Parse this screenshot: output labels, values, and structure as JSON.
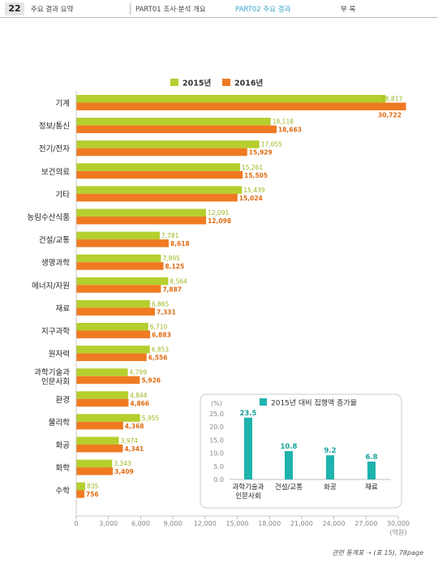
{
  "header": {
    "page_number": "22",
    "nav": [
      "주요 결과 요약",
      "PART01 조사·분석 개요",
      "PART02 주요 결과",
      "부  록"
    ],
    "active_index": 2
  },
  "footer": {
    "note": "관련 통계표 ➝ (표 15), 78page"
  },
  "colors": {
    "y2015": "#b5cf2e",
    "y2016": "#f07a22",
    "inset": "#1fb3ad"
  },
  "chart_data": [
    {
      "type": "bar",
      "orientation": "horizontal",
      "categories": [
        "기계",
        "정보/통신",
        "전기/전자",
        "보건의료",
        "기타",
        "농림수산식품",
        "건설/교통",
        "생명과학",
        "에너지/자원",
        "재료",
        "지구과학",
        "원자력",
        "과학기술과 인문사회",
        "환경",
        "물리학",
        "화공",
        "화학",
        "수학"
      ],
      "series": [
        {
          "name": "2015년",
          "values": [
            28817,
            18118,
            17055,
            15261,
            15439,
            12091,
            7781,
            7895,
            8564,
            6865,
            6710,
            6853,
            4799,
            4844,
            5955,
            3974,
            3343,
            835
          ]
        },
        {
          "name": "2016년",
          "values": [
            30722,
            18663,
            15929,
            15505,
            15024,
            12098,
            8618,
            8125,
            7887,
            7331,
            6883,
            6556,
            5926,
            4866,
            4368,
            4341,
            3409,
            756
          ]
        }
      ],
      "value_labels": {
        "2015년": [
          "28,817",
          "18,118",
          "17,055",
          "15,261",
          "15,439",
          "12,091",
          "7,781",
          "7,895",
          "8,564",
          "6,865",
          "6,710",
          "6,853",
          "4,799",
          "4,844",
          "5,955",
          "3,974",
          "3,343",
          "835"
        ],
        "2016년": [
          "30,722",
          "18,663",
          "15,929",
          "15,505",
          "15,024",
          "12,098",
          "8,618",
          "8,125",
          "7,887",
          "7,331",
          "6,883",
          "6,556",
          "5,926",
          "4,866",
          "4,368",
          "4,341",
          "3,409",
          "756"
        ]
      },
      "xlim": [
        0,
        30000
      ],
      "xticks": [
        "0",
        "3,000",
        "6,000",
        "9,000",
        "12,000",
        "15,000",
        "18,000",
        "21,000",
        "24,000",
        "27,000",
        "30,000"
      ],
      "xunit": "(억원)",
      "legend_position": "top"
    },
    {
      "type": "bar",
      "title": "2015년 대비 집행액 증가율",
      "yunit": "(%)",
      "categories": [
        "과학기술과 인문사회",
        "건설/교통",
        "화공",
        "재료"
      ],
      "values": [
        23.5,
        10.8,
        9.2,
        6.8
      ],
      "value_labels": [
        "23.5",
        "10.8",
        "9.2",
        "6.8"
      ],
      "ylim": [
        0,
        25
      ],
      "yticks": [
        "0.0",
        "5.0",
        "10.0",
        "15.0",
        "20.0",
        "25.0"
      ]
    }
  ]
}
